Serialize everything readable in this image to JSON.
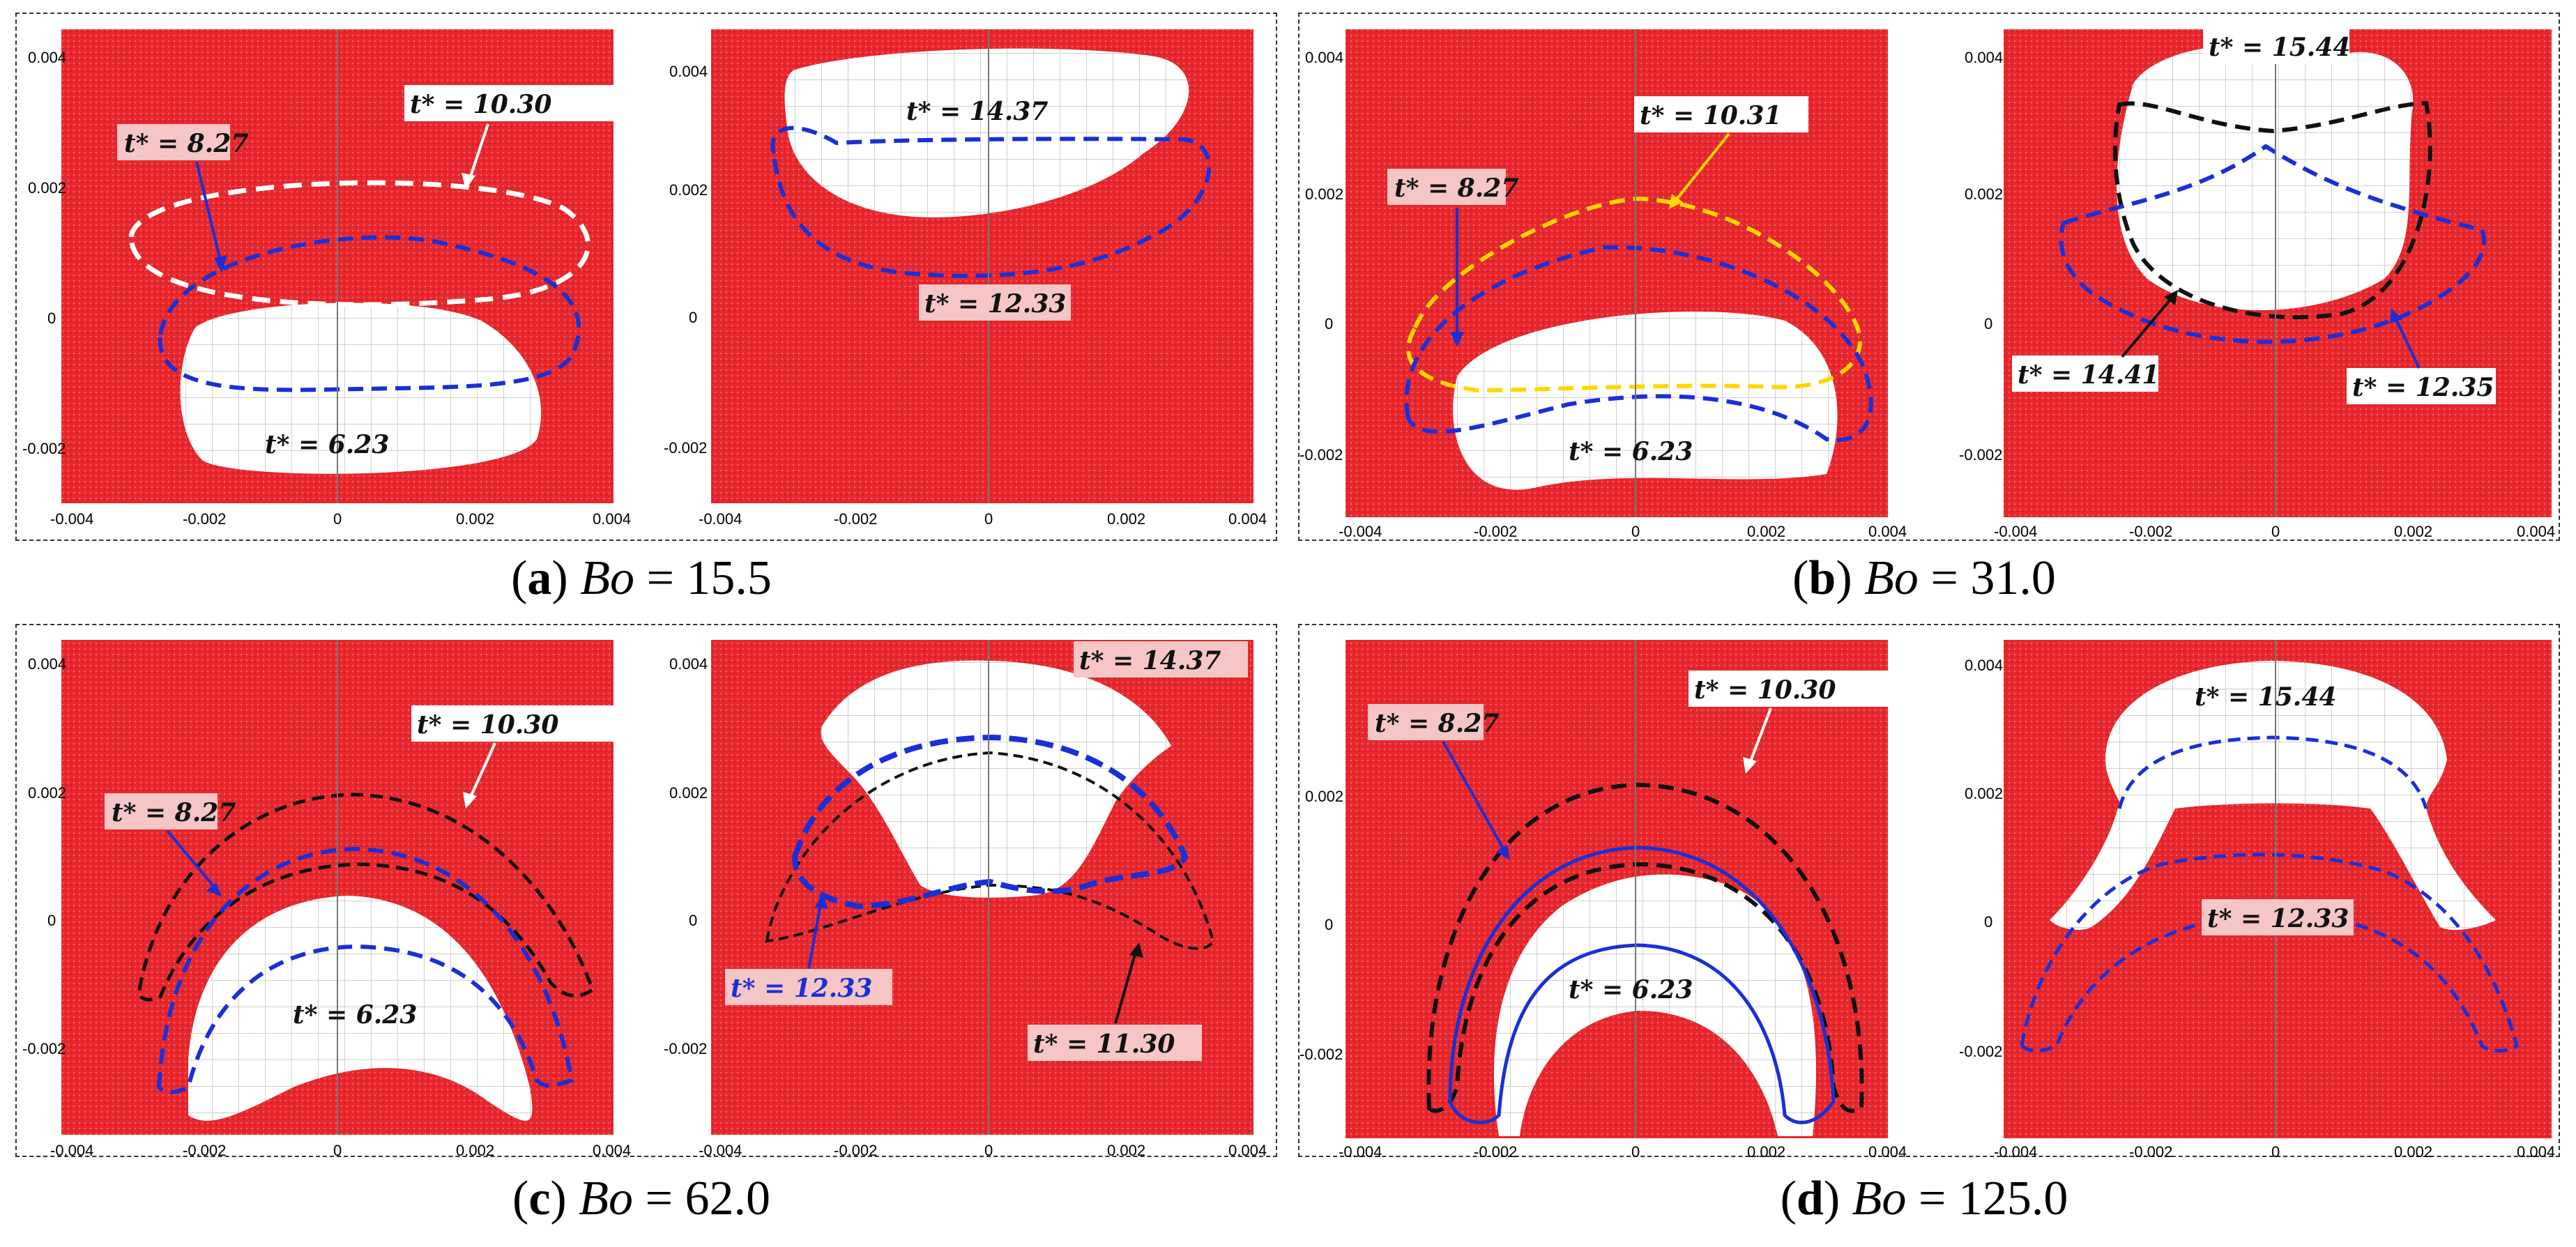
{
  "captions": [
    {
      "letter": "a",
      "param": "Bo",
      "value": "= 15.5"
    },
    {
      "letter": "b",
      "param": "Bo",
      "value": "= 31.0"
    },
    {
      "letter": "c",
      "param": "Bo",
      "value": "= 62.0"
    },
    {
      "letter": "d",
      "param": "Bo",
      "value": "= 125.0"
    }
  ],
  "ticks": {
    "x": [
      "-0.004",
      "-0.002",
      "0",
      "0.002",
      "0.004"
    ],
    "y4": [
      "0.004",
      "0.002",
      "0",
      "-0.002"
    ],
    "y3": [
      "0.002",
      "0",
      "-0.002"
    ]
  },
  "labels": {
    "a_left": [
      "t* = 8.27",
      "t* = 10.30",
      "t* = 6.23"
    ],
    "a_right": [
      "t* = 14.37",
      "t* = 12.33"
    ],
    "b_left": [
      "t* = 8.27",
      "t* = 10.31",
      "t* = 6.23"
    ],
    "b_right": [
      "t* = 15.44",
      "t* = 14.41",
      "t* = 12.35"
    ],
    "c_left": [
      "t* = 8.27",
      "t* = 10.30",
      "t* = 6.23"
    ],
    "c_right": [
      "t* = 14.37",
      "t* = 12.33",
      "t* = 11.30"
    ],
    "d_left": [
      "t* = 8.27",
      "t* = 10.30",
      "t* = 6.23"
    ],
    "d_right": [
      "t* = 15.44",
      "t* = 12.33"
    ]
  },
  "colors": {
    "field": "#e8282e",
    "bubble": "#ffffff",
    "blue": "#1a2fd6",
    "black": "#111111",
    "white_dash": "#ffffff",
    "yellow": "#ffd700",
    "label_bg": "#f6c6c6"
  }
}
